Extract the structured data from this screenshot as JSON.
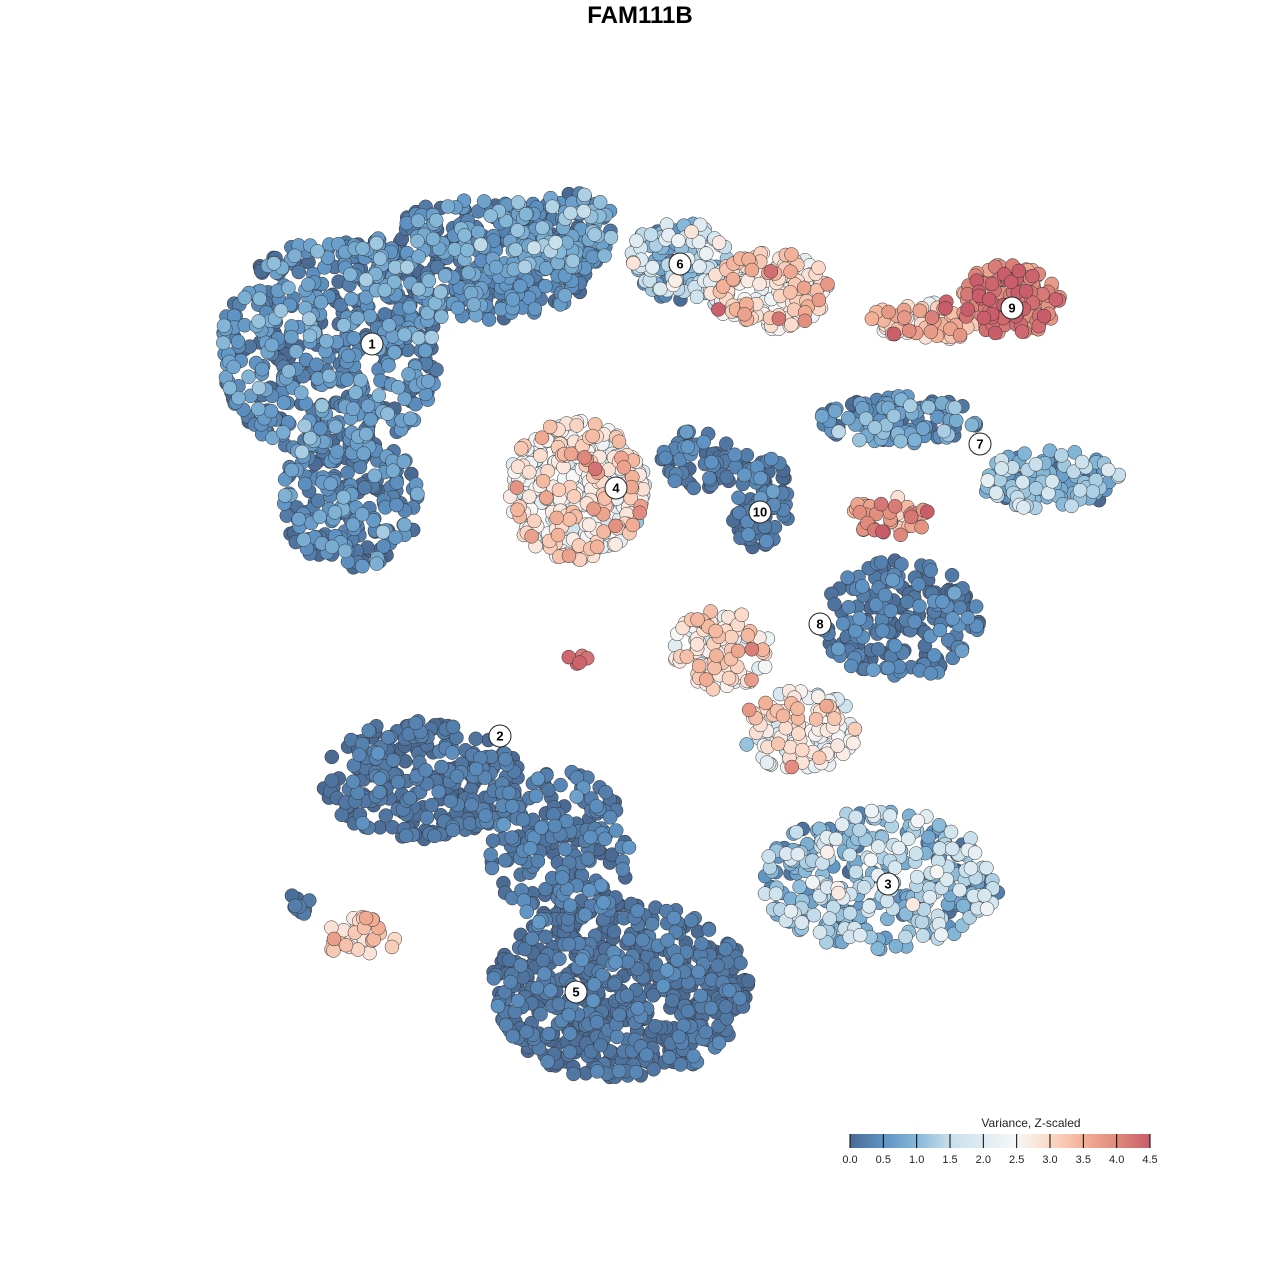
{
  "chart_data": {
    "type": "scatter",
    "title": "FAM111B",
    "xlabel": "",
    "ylabel": "",
    "grid": false,
    "axes_visible": false,
    "color_scale": {
      "title": "Variance, Z-scaled",
      "range": [
        0,
        4.5
      ],
      "ticks": [
        "0.0",
        "0.5",
        "1.0",
        "1.5",
        "2.0",
        "2.5",
        "3.0",
        "3.5",
        "4.0",
        "4.5"
      ],
      "stops": [
        {
          "value": 0.0,
          "color": "#4a6a94"
        },
        {
          "value": 0.5,
          "color": "#5e93c4"
        },
        {
          "value": 1.0,
          "color": "#86b8d8"
        },
        {
          "value": 1.5,
          "color": "#c7dfec"
        },
        {
          "value": 2.5,
          "color": "#f7f7f7"
        },
        {
          "value": 3.0,
          "color": "#fbd9c8"
        },
        {
          "value": 3.5,
          "color": "#f2b096"
        },
        {
          "value": 4.0,
          "color": "#e08a7d"
        },
        {
          "value": 4.5,
          "color": "#c95d6a"
        }
      ],
      "legend_placement": "bottom-right"
    },
    "clusters": [
      {
        "label": "1",
        "x": -6.7,
        "y": 7.4
      },
      {
        "label": "2",
        "x": -3.5,
        "y": -2.4
      },
      {
        "label": "3",
        "x": 6.2,
        "y": -6.1
      },
      {
        "label": "4",
        "x": -0.6,
        "y": 3.8
      },
      {
        "label": "5",
        "x": -1.6,
        "y": -8.8
      },
      {
        "label": "6",
        "x": 1.0,
        "y": 9.4
      },
      {
        "label": "7",
        "x": 8.5,
        "y": 4.9
      },
      {
        "label": "8",
        "x": 4.5,
        "y": 0.4
      },
      {
        "label": "9",
        "x": 9.3,
        "y": 8.3
      },
      {
        "label": "10",
        "x": 3.0,
        "y": 3.2
      }
    ],
    "point_groups": [
      {
        "cluster": "1",
        "x": -7.75,
        "y": 7.25,
        "sx": 2.75,
        "sy": 2.75,
        "n": 500,
        "mean": 0.4,
        "sd": 0.35
      },
      {
        "cluster": "1",
        "x": -4.0,
        "y": 9.5,
        "sx": 3.0,
        "sy": 1.5,
        "n": 400,
        "mean": 0.4,
        "sd": 0.35
      },
      {
        "cluster": "1",
        "x": -7.25,
        "y": 3.5,
        "sx": 1.75,
        "sy": 1.75,
        "n": 200,
        "mean": 0.3,
        "sd": 0.3
      },
      {
        "cluster": "1",
        "x": -2.0,
        "y": 10.25,
        "sx": 1.5,
        "sy": 1.0,
        "n": 120,
        "mean": 0.6,
        "sd": 0.4
      },
      {
        "cluster": "6",
        "x": 1.0,
        "y": 9.5,
        "sx": 1.25,
        "sy": 1.0,
        "n": 120,
        "mean": 1.5,
        "sd": 0.6
      },
      {
        "cluster": "6",
        "x": 3.25,
        "y": 8.75,
        "sx": 1.5,
        "sy": 1.0,
        "n": 150,
        "mean": 2.8,
        "sd": 0.5
      },
      {
        "cluster": "9",
        "x": 9.25,
        "y": 8.5,
        "sx": 1.25,
        "sy": 0.9,
        "n": 150,
        "mean": 4.0,
        "sd": 0.4
      },
      {
        "cluster": "9",
        "x": 7.25,
        "y": 8.0,
        "sx": 1.5,
        "sy": 0.5,
        "n": 80,
        "mean": 3.0,
        "sd": 0.6
      },
      {
        "cluster": "4",
        "x": -1.6,
        "y": 3.75,
        "sx": 1.75,
        "sy": 1.75,
        "n": 300,
        "mean": 2.6,
        "sd": 0.5
      },
      {
        "cluster": "10",
        "x": 3.0,
        "y": 3.5,
        "sx": 0.75,
        "sy": 1.25,
        "n": 80,
        "mean": 0.2,
        "sd": 0.2
      },
      {
        "cluster": "10",
        "x": 1.5,
        "y": 4.5,
        "sx": 1.0,
        "sy": 0.75,
        "n": 60,
        "mean": 0.2,
        "sd": 0.2
      },
      {
        "cluster": "7",
        "x": 6.5,
        "y": 5.5,
        "sx": 2.0,
        "sy": 0.6,
        "n": 120,
        "mean": 0.5,
        "sd": 0.4
      },
      {
        "cluster": "7",
        "x": 10.25,
        "y": 4.0,
        "sx": 1.75,
        "sy": 0.75,
        "n": 120,
        "mean": 1.0,
        "sd": 0.5
      },
      {
        "cluster": "7",
        "x": 6.25,
        "y": 3.1,
        "sx": 1.0,
        "sy": 0.5,
        "n": 40,
        "mean": 3.8,
        "sd": 0.4
      },
      {
        "cluster": "8",
        "x": 6.5,
        "y": 0.5,
        "sx": 2.0,
        "sy": 1.5,
        "n": 200,
        "mean": 0.2,
        "sd": 0.2
      },
      {
        "cluster": "8",
        "x": 2.0,
        "y": -0.25,
        "sx": 1.25,
        "sy": 1.0,
        "n": 100,
        "mean": 2.8,
        "sd": 0.5
      },
      {
        "cluster": "2",
        "x": -5.5,
        "y": -3.5,
        "sx": 2.5,
        "sy": 1.5,
        "n": 300,
        "mean": 0.1,
        "sd": 0.15
      },
      {
        "cluster": "5",
        "x": -0.5,
        "y": -8.75,
        "sx": 3.25,
        "sy": 2.25,
        "n": 600,
        "mean": 0.1,
        "sd": 0.15
      },
      {
        "cluster": "5",
        "x": -2.0,
        "y": -5.25,
        "sx": 1.75,
        "sy": 2.0,
        "n": 200,
        "mean": 0.2,
        "sd": 0.2
      },
      {
        "cluster": "3",
        "x": 6.0,
        "y": -6.0,
        "sx": 3.0,
        "sy": 1.75,
        "n": 350,
        "mean": 1.0,
        "sd": 0.6
      },
      {
        "cluster": "3",
        "x": 4.0,
        "y": -2.25,
        "sx": 1.5,
        "sy": 1.0,
        "n": 120,
        "mean": 2.5,
        "sd": 0.6
      },
      {
        "cluster": "",
        "x": -7.0,
        "y": -7.4,
        "sx": 1.0,
        "sy": 0.5,
        "n": 30,
        "mean": 3.0,
        "sd": 0.4
      },
      {
        "cluster": "",
        "x": -8.5,
        "y": -6.6,
        "sx": 0.4,
        "sy": 0.25,
        "n": 10,
        "mean": 0.1,
        "sd": 0.1
      },
      {
        "cluster": "",
        "x": -1.55,
        "y": -0.4,
        "sx": 0.25,
        "sy": 0.2,
        "n": 6,
        "mean": 4.2,
        "sd": 0.2
      }
    ]
  }
}
